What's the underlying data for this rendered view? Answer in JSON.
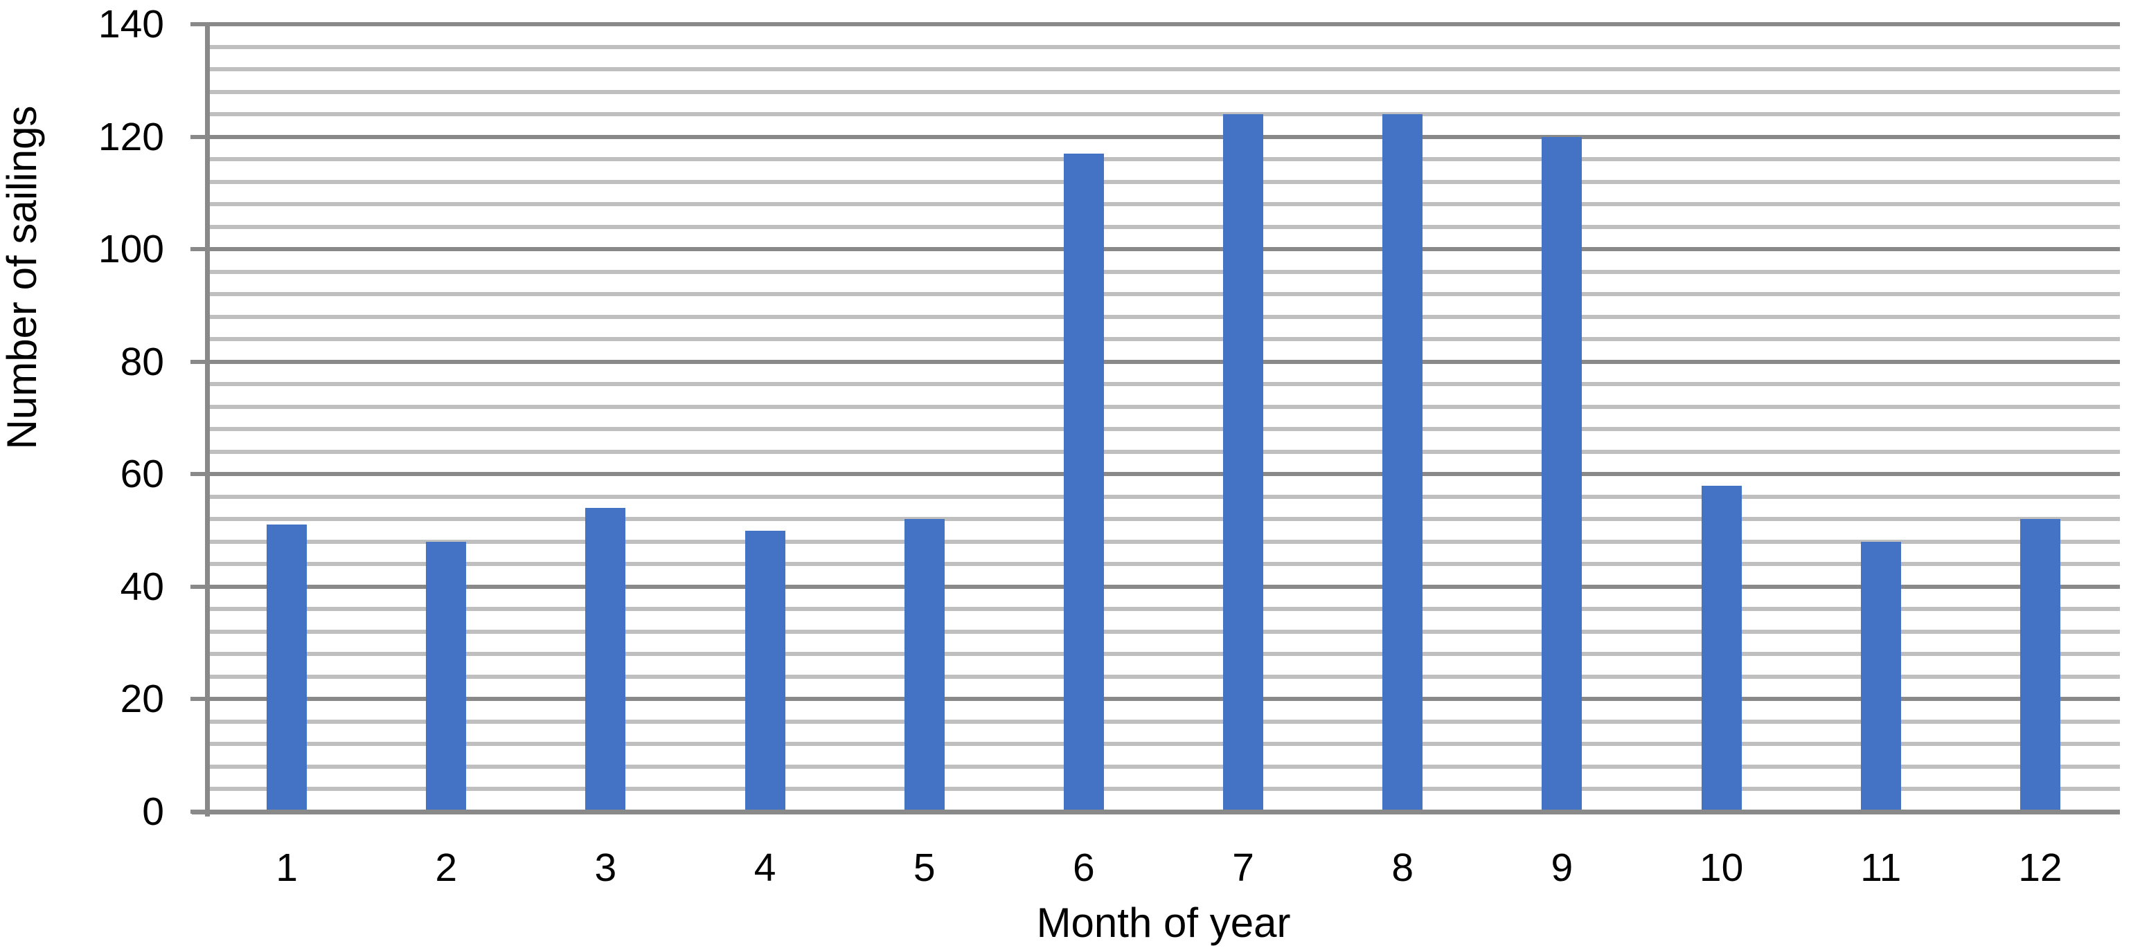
{
  "chart_data": {
    "type": "bar",
    "title": "",
    "xlabel": "Month of year",
    "ylabel": "Number of sailings",
    "categories": [
      "1",
      "2",
      "3",
      "4",
      "5",
      "6",
      "7",
      "8",
      "9",
      "10",
      "11",
      "12"
    ],
    "values": [
      51,
      48,
      54,
      50,
      52,
      117,
      124,
      124,
      120,
      58,
      48,
      52
    ],
    "series_name": "Number of sailings",
    "ylim": [
      0,
      140
    ],
    "y_major_unit": 20,
    "y_minor_unit": 4,
    "y_tick_labels": [
      "0",
      "20",
      "40",
      "60",
      "80",
      "100",
      "120",
      "140"
    ],
    "grid": {
      "horizontal_major": true,
      "horizontal_minor": true,
      "vertical": false
    },
    "legend": "none",
    "colors": {
      "bar_fill": "#4472C4",
      "major_gridline": "#898989",
      "minor_gridline": "#BFBFBF",
      "axis_line": "#898989",
      "text": "#000000",
      "background": "#FFFFFF"
    }
  }
}
